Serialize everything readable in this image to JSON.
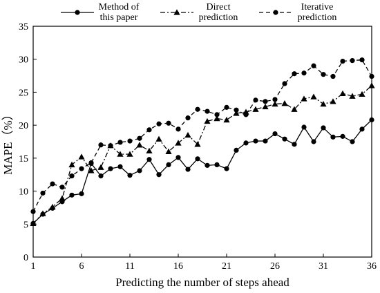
{
  "chart_data": {
    "type": "line",
    "title": "",
    "xlabel": "Predicting the number of steps ahead",
    "ylabel": "MAPE（%）",
    "xlim": [
      1,
      36
    ],
    "ylim": [
      0,
      35
    ],
    "xticks": [
      1,
      6,
      11,
      16,
      21,
      26,
      31,
      36
    ],
    "yticks": [
      0,
      5,
      10,
      15,
      20,
      25,
      30,
      35
    ],
    "grid": false,
    "legend_position": "top",
    "x": [
      1,
      2,
      3,
      4,
      5,
      6,
      7,
      8,
      9,
      10,
      11,
      12,
      13,
      14,
      15,
      16,
      17,
      18,
      19,
      20,
      21,
      22,
      23,
      24,
      25,
      26,
      27,
      28,
      29,
      30,
      31,
      32,
      33,
      34,
      35,
      36
    ],
    "series": [
      {
        "name": "Method of this paper",
        "line_style": "solid",
        "marker": "circle",
        "color": "#000000",
        "values": [
          5.1,
          6.5,
          7.4,
          8.4,
          9.4,
          9.6,
          14.2,
          12.3,
          13.4,
          13.7,
          12.4,
          13.1,
          14.8,
          12.5,
          14.0,
          15.1,
          13.3,
          14.9,
          13.9,
          14.0,
          13.4,
          16.2,
          17.3,
          17.6,
          17.6,
          18.7,
          17.9,
          17.1,
          19.7,
          17.5,
          19.6,
          18.2,
          18.3,
          17.5,
          19.4,
          20.8
        ]
      },
      {
        "name": "Direct prediction",
        "line_style": "dash-dot",
        "marker": "triangle",
        "color": "#000000",
        "values": [
          5.1,
          6.6,
          7.6,
          8.9,
          14.0,
          15.2,
          13.1,
          13.6,
          16.9,
          15.6,
          15.6,
          17.0,
          16.1,
          17.9,
          16.0,
          17.3,
          18.5,
          17.1,
          20.6,
          21.0,
          20.8,
          21.8,
          22.0,
          22.4,
          22.8,
          23.2,
          23.3,
          22.4,
          24.0,
          24.3,
          23.2,
          23.6,
          24.8,
          24.4,
          24.7,
          26.0
        ]
      },
      {
        "name": "Iterative prediction",
        "line_style": "dashed",
        "marker": "circle",
        "color": "#000000",
        "values": [
          6.9,
          9.7,
          11.1,
          10.6,
          12.3,
          13.4,
          14.3,
          17.0,
          16.9,
          17.4,
          17.6,
          18.0,
          19.3,
          20.2,
          20.3,
          19.4,
          21.1,
          22.4,
          22.1,
          21.6,
          22.7,
          22.3,
          21.6,
          23.8,
          23.6,
          23.9,
          26.3,
          27.8,
          27.9,
          29.0,
          27.7,
          27.4,
          29.7,
          29.8,
          29.9,
          27.4
        ]
      }
    ],
    "legend": {
      "items": [
        {
          "lines": [
            "Method of",
            "this paper"
          ]
        },
        {
          "lines": [
            "Direct",
            "prediction"
          ]
        },
        {
          "lines": [
            "Iterative",
            "prediction"
          ]
        }
      ]
    }
  }
}
